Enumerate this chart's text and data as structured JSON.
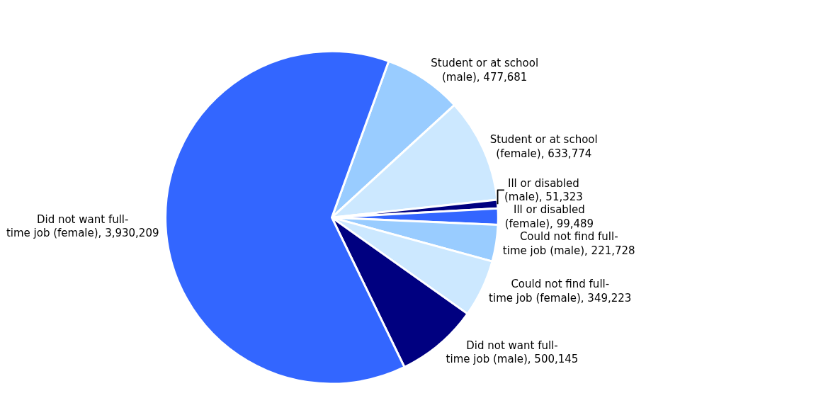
{
  "chart_data": {
    "type": "pie",
    "categories": [
      "Student or at school (male)",
      "Student or at school (female)",
      "Ill or disabled (male)",
      "Ill or disabled (female)",
      "Could not find full-time job (male)",
      "Could not find full-time job (female)",
      "Did not want full-time job (male)",
      "Did not want full-time job (female)"
    ],
    "values": [
      477681,
      633774,
      51323,
      99489,
      221728,
      349223,
      500145,
      3930209
    ],
    "value_labels": [
      "477,681",
      "633,774",
      "51,323",
      "99,489",
      "221,728",
      "349,223",
      "500,145",
      "3,930,209"
    ],
    "colors": [
      "#99ccff",
      "#cce8ff",
      "#000080",
      "#3366ff",
      "#99ccff",
      "#cce8ff",
      "#000080",
      "#3366ff"
    ],
    "legend": false
  }
}
